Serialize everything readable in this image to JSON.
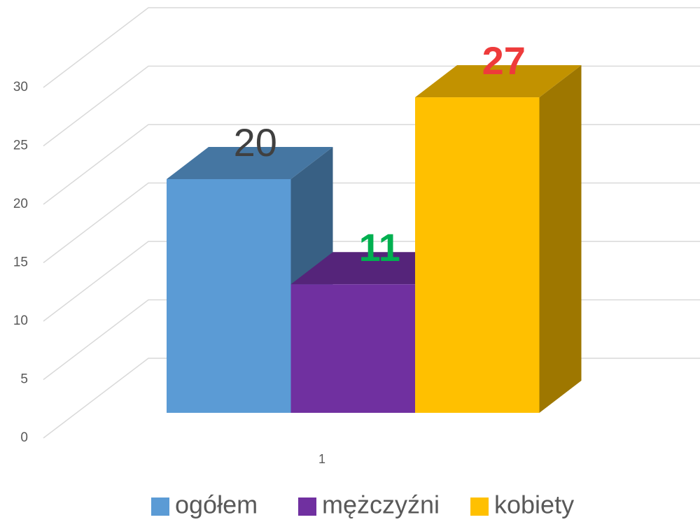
{
  "chart_data": {
    "type": "bar3d",
    "categories": [
      "1"
    ],
    "series": [
      {
        "name": "ogółem",
        "color": "#5b9bd5",
        "values": [
          20
        ],
        "label_color": "#404040",
        "label_bold": false
      },
      {
        "name": "mężczyźni",
        "color": "#7030a0",
        "values": [
          11
        ],
        "label_color": "#00b050",
        "label_bold": true
      },
      {
        "name": "kobiety",
        "color": "#ffc000",
        "values": [
          27
        ],
        "label_color": "#ee3b3b",
        "label_bold": true
      }
    ],
    "ylim": [
      0,
      30
    ],
    "yticks": [
      0,
      5,
      10,
      15,
      20,
      25,
      30
    ],
    "grid": true,
    "legend": "bottom"
  }
}
